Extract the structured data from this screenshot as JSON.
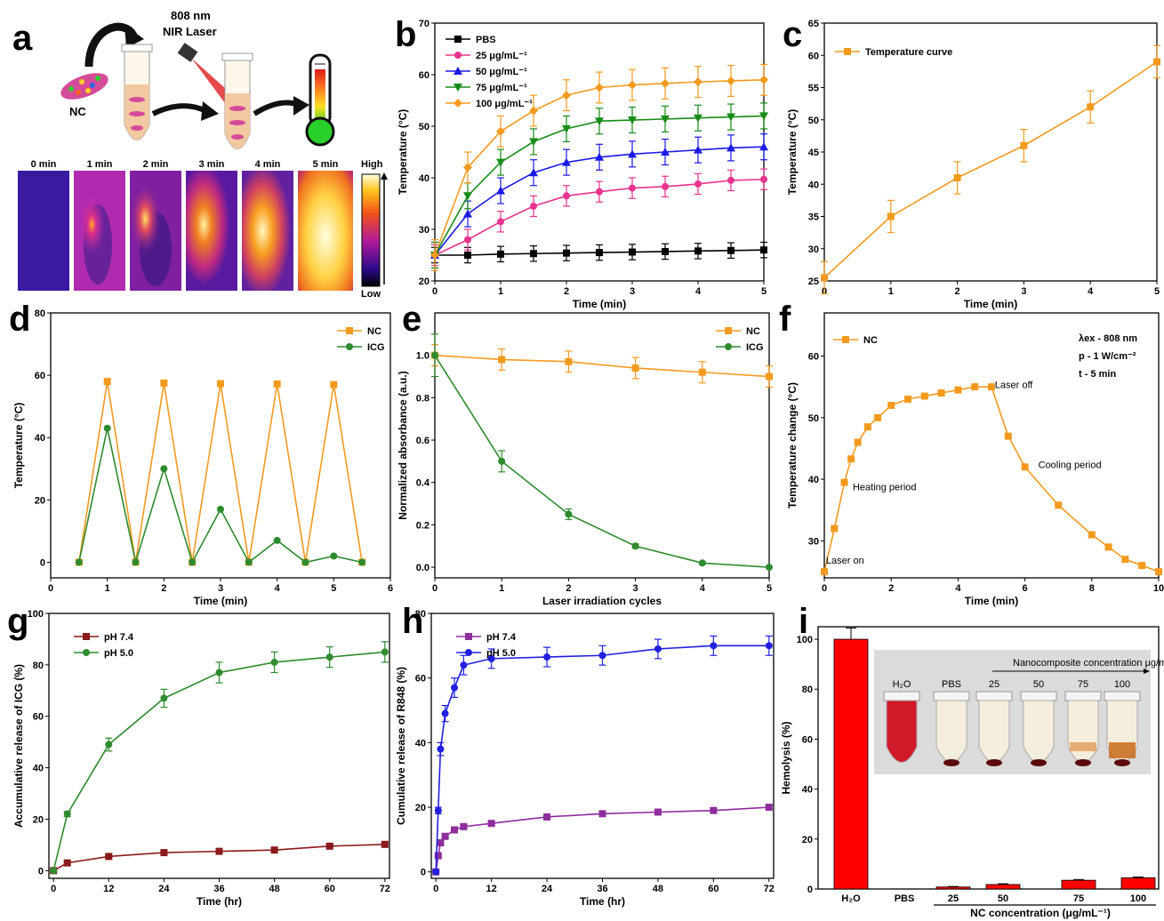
{
  "scheme": {
    "nc_label": "NC",
    "laser_label_1": "808 nm",
    "laser_label_2": "NIR Laser",
    "thermal_times": [
      "0 min",
      "1 min",
      "2 min",
      "3 min",
      "4 min",
      "5 min"
    ],
    "colorbar_high": "High",
    "colorbar_low": "Low"
  },
  "colors": {
    "black": "#000000",
    "pink": "#e8338f",
    "blue": "#1a1ae6",
    "green": "#168c16",
    "orange": "#f39a1e",
    "dgreen": "#2e8b2e",
    "darkred": "#8b1a1a",
    "purple": "#8e2d9e",
    "brightblue": "#2020e0",
    "red": "#ff0000"
  },
  "chart_data": [
    {
      "panel": "b",
      "type": "line",
      "xlabel": "Time (min)",
      "ylabel": "Temperature (°C)",
      "xlim": [
        0,
        5
      ],
      "ylim": [
        20,
        70
      ],
      "xticks": [
        0,
        1,
        2,
        3,
        4,
        5
      ],
      "yticks": [
        20,
        30,
        40,
        50,
        60,
        70
      ],
      "x": [
        0,
        0.5,
        1,
        1.5,
        2,
        2.5,
        3,
        3.5,
        4,
        4.5,
        5
      ],
      "series": [
        {
          "name": "PBS",
          "values": [
            25,
            25,
            25.2,
            25.3,
            25.4,
            25.5,
            25.6,
            25.7,
            25.8,
            25.9,
            26
          ],
          "err": 1.5,
          "color": "#000000",
          "marker": "square"
        },
        {
          "name": "25 μg/mL⁻¹",
          "values": [
            25,
            28,
            31.5,
            34.5,
            36.5,
            37.3,
            38,
            38.3,
            38.8,
            39.5,
            39.7
          ],
          "err": 2,
          "color": "#e8338f",
          "marker": "circle"
        },
        {
          "name": "50 μg/mL⁻¹",
          "values": [
            25,
            33,
            37.5,
            41,
            43,
            44,
            44.6,
            45,
            45.4,
            45.8,
            46
          ],
          "err": 2.5,
          "color": "#1a1ae6",
          "marker": "triangle"
        },
        {
          "name": "75 μg/mL⁻¹",
          "values": [
            25,
            36.5,
            43,
            47,
            49.5,
            51,
            51.2,
            51.4,
            51.6,
            51.8,
            52
          ],
          "err": 2.5,
          "color": "#168c16",
          "marker": "triangle-down"
        },
        {
          "name": "100 μg/mL⁻¹",
          "values": [
            25,
            42,
            49,
            53,
            56,
            57.5,
            58,
            58.3,
            58.6,
            58.8,
            59
          ],
          "err": 3,
          "color": "#f39a1e",
          "marker": "diamond"
        }
      ]
    },
    {
      "panel": "c",
      "type": "line",
      "xlabel": "Time (min)",
      "ylabel": "Temperature (°C)",
      "xlim": [
        0,
        5
      ],
      "ylim": [
        25,
        65
      ],
      "xticks": [
        0,
        1,
        2,
        3,
        4,
        5
      ],
      "yticks": [
        25,
        30,
        35,
        40,
        45,
        50,
        55,
        60,
        65
      ],
      "x": [
        0,
        1,
        2,
        3,
        4,
        5
      ],
      "series": [
        {
          "name": "Temperature curve",
          "values": [
            25.5,
            35,
            41,
            46,
            52,
            59
          ],
          "err": 2.5,
          "color": "#f39a1e",
          "marker": "square"
        }
      ]
    },
    {
      "panel": "d",
      "type": "line",
      "xlabel": "Time (min)",
      "ylabel": "Temperature (°C)",
      "xlim": [
        0,
        6
      ],
      "ylim": [
        -5,
        80
      ],
      "xticks": [
        0,
        1,
        2,
        3,
        4,
        5,
        6
      ],
      "yticks": [
        0,
        20,
        40,
        60,
        80
      ],
      "x": [
        0.5,
        1,
        1.5,
        2,
        2.5,
        3,
        3.5,
        4,
        4.5,
        5,
        5.5
      ],
      "series": [
        {
          "name": "NC",
          "values": [
            0,
            58,
            0,
            57.5,
            0,
            57.3,
            0,
            57.2,
            0,
            57,
            0
          ],
          "color": "#f39a1e",
          "marker": "square"
        },
        {
          "name": "ICG",
          "values": [
            0,
            43,
            0,
            30,
            0,
            17,
            0,
            7,
            0,
            2,
            0
          ],
          "color": "#2e8b2e",
          "marker": "circle"
        }
      ]
    },
    {
      "panel": "e",
      "type": "line",
      "xlabel": "Laser irradiation cycles",
      "ylabel": "Normalized absorbance (a.u.)",
      "xlim": [
        0,
        5
      ],
      "ylim": [
        -0.05,
        1.2
      ],
      "xticks": [
        0,
        1,
        2,
        3,
        4,
        5
      ],
      "yticks": [
        0.0,
        0.2,
        0.4,
        0.6,
        0.8,
        1.0
      ],
      "x": [
        0,
        1,
        2,
        3,
        4,
        5
      ],
      "series": [
        {
          "name": "NC",
          "values": [
            1.0,
            0.98,
            0.97,
            0.94,
            0.92,
            0.9
          ],
          "err": 0.05,
          "color": "#f39a1e",
          "marker": "square"
        },
        {
          "name": "ICG",
          "values": [
            1.0,
            0.5,
            0.25,
            0.1,
            0.02,
            0.0
          ],
          "err": [
            0.1,
            0.05,
            0.025,
            0.01,
            0.005,
            0
          ],
          "color": "#2e8b2e",
          "marker": "circle"
        }
      ]
    },
    {
      "panel": "f",
      "type": "line",
      "xlabel": "Time (min)",
      "ylabel": "Temperature change (°C)",
      "xlim": [
        0,
        10
      ],
      "ylim": [
        24,
        67
      ],
      "xticks": [
        0,
        2,
        4,
        6,
        8,
        10
      ],
      "yticks": [
        30,
        40,
        50,
        60
      ],
      "x": [
        0,
        0.3,
        0.6,
        0.8,
        1,
        1.3,
        1.6,
        2,
        2.5,
        3,
        3.5,
        4,
        4.5,
        5,
        5.5,
        6,
        7,
        8,
        8.5,
        9,
        9.5,
        10
      ],
      "series": [
        {
          "name": "NC",
          "values": [
            25,
            32,
            39.5,
            43.3,
            46,
            48.5,
            50,
            52,
            53,
            53.5,
            54,
            54.5,
            55,
            55,
            47,
            42,
            35.8,
            31,
            29,
            27,
            26,
            25
          ],
          "color": "#f39a1e",
          "marker": "square"
        }
      ],
      "legend_info": [
        "λex - 808 nm",
        "p - 1 W/cm⁻²",
        "t - 5 min"
      ],
      "annotations": [
        "Laser on",
        "Heating period",
        "Laser off",
        "Cooling period"
      ]
    },
    {
      "panel": "g",
      "type": "line",
      "xlabel": "Time (hr)",
      "ylabel": "Accumulative release of ICG (%)",
      "xlim": [
        -1,
        73
      ],
      "ylim": [
        -3,
        100
      ],
      "xticks": [
        0,
        12,
        24,
        36,
        48,
        60,
        72
      ],
      "yticks": [
        0,
        20,
        40,
        60,
        80,
        100
      ],
      "x": [
        0,
        3,
        12,
        24,
        36,
        48,
        60,
        72
      ],
      "series": [
        {
          "name": "pH 7.4",
          "values": [
            0,
            3,
            5.5,
            7,
            7.5,
            8,
            9.5,
            10.2
          ],
          "err": 0.5,
          "color": "#8b1a1a",
          "marker": "square"
        },
        {
          "name": "pH 5.0",
          "values": [
            0,
            22,
            49,
            67,
            77,
            81,
            83,
            85
          ],
          "err": [
            0,
            1,
            2.5,
            3.5,
            4,
            4,
            4,
            4
          ],
          "color": "#2e8b2e",
          "marker": "circle"
        }
      ]
    },
    {
      "panel": "h",
      "type": "line",
      "xlabel": "Time (hr)",
      "ylabel": "Cumulative release of R848 (%)",
      "xlim": [
        -1,
        73
      ],
      "ylim": [
        -2,
        80
      ],
      "xticks": [
        0,
        12,
        24,
        36,
        48,
        60,
        72
      ],
      "yticks": [
        0,
        20,
        40,
        60,
        80
      ],
      "x": [
        0,
        0.5,
        1,
        2,
        4,
        6,
        12,
        24,
        36,
        48,
        60,
        72
      ],
      "series": [
        {
          "name": "pH 7.4",
          "values": [
            0,
            5,
            9,
            11,
            13,
            14,
            15,
            17,
            18,
            18.5,
            19,
            20
          ],
          "err": 0.5,
          "color": "#8e2d9e",
          "marker": "square"
        },
        {
          "name": "pH 5.0",
          "values": [
            0,
            19,
            38,
            49,
            57,
            64,
            66,
            66.5,
            67,
            69,
            70,
            70
          ],
          "err": [
            0,
            1,
            2,
            2.5,
            3,
            3,
            3,
            3,
            3,
            3,
            3,
            3
          ],
          "color": "#2020e0",
          "marker": "circle"
        }
      ]
    },
    {
      "panel": "i",
      "type": "bar",
      "categories": [
        "H₂O",
        "PBS",
        "25",
        "50",
        "75",
        "100"
      ],
      "values": [
        100,
        0,
        0.8,
        1.8,
        3.5,
        4.5
      ],
      "err": [
        4.5,
        0,
        0.2,
        0.3,
        0.3,
        0.3
      ],
      "ylabel": "Hemolysis (%)",
      "xlabel": "NC concentration (μg/mL⁻¹)",
      "ylim": [
        0,
        105
      ],
      "yticks": [
        0,
        20,
        40,
        60,
        80,
        100
      ],
      "color": "#ff0000",
      "inset_title": "Nanocomposite concentration μg/mL⁻¹",
      "inset_labels": [
        "H₂O",
        "PBS",
        "25",
        "50",
        "75",
        "100"
      ]
    }
  ]
}
